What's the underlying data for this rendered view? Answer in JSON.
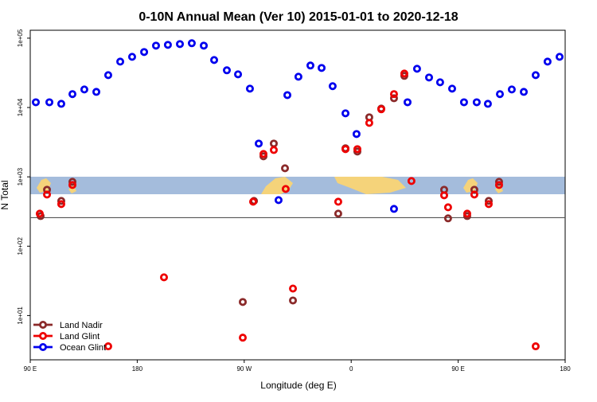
{
  "chart_data": {
    "type": "scatter",
    "title": "0-10N Annual Mean (Ver 10)   2015-01-01 to 2020-12-18",
    "xlabel": "Longitude (deg E)",
    "ylabel": "N Total",
    "log_y": true,
    "legend": "lower left",
    "hline": 258,
    "xlim": [
      90,
      540
    ],
    "ylim": [
      2.3,
      130000
    ],
    "xticks": [
      {
        "value": 90,
        "label": "90 E"
      },
      {
        "value": 180,
        "label": "180"
      },
      {
        "value": 270,
        "label": "90 W"
      },
      {
        "value": 360,
        "label": "0"
      },
      {
        "value": 450,
        "label": "90 E"
      },
      {
        "value": 540,
        "label": "180"
      }
    ],
    "yticks": [
      {
        "value": 10,
        "label": "1e+01"
      },
      {
        "value": 100,
        "label": "1e+02"
      },
      {
        "value": 1000,
        "label": "1e+03"
      },
      {
        "value": 10000,
        "label": "1e+04"
      },
      {
        "value": 100000,
        "label": "1e+05"
      }
    ],
    "series": [
      {
        "name": "Land Nadir",
        "color": "#8b2a2a",
        "x": [
          98.7,
          104.1,
          116.1,
          125.5,
          268.8,
          278.2,
          286.2,
          294.9,
          304.3,
          311.0,
          349.1,
          355.2,
          365.2,
          375.2,
          385.3,
          396.0,
          404.7,
          438.2,
          441.5,
          457.6,
          463.6,
          475.7,
          484.4
        ],
        "values": [
          272,
          652,
          450,
          849,
          15.7,
          450,
          1980,
          3020,
          1330,
          16.5,
          295,
          2580,
          2320,
          7230,
          9660,
          13600,
          28600,
          652,
          252,
          272,
          652,
          450,
          849
        ]
      },
      {
        "name": "Land Glint",
        "color": "#ee0000",
        "x": [
          98.0,
          104.1,
          116.1,
          125.5,
          155.6,
          202.5,
          268.8,
          277.5,
          286.2,
          294.9,
          304.9,
          311.0,
          349.1,
          355.2,
          365.2,
          375.2,
          385.3,
          396.0,
          404.7,
          410.7,
          438.2,
          441.5,
          457.6,
          463.6,
          475.7,
          484.4,
          515.2
        ],
        "values": [
          295,
          556,
          405,
          764,
          3.6,
          35.6,
          4.8,
          438,
          2140,
          2440,
          669,
          24.5,
          438,
          2510,
          2510,
          6000,
          9420,
          15600,
          30900,
          871,
          542,
          364,
          295,
          556,
          405,
          764,
          3.6
        ]
      },
      {
        "name": "Ocean Glint",
        "color": "#0000ee",
        "x": [
          94.7,
          106.1,
          116.1,
          125.5,
          135.5,
          145.6,
          155.6,
          165.7,
          175.7,
          185.8,
          195.8,
          205.8,
          215.9,
          225.9,
          236.0,
          244.7,
          255.4,
          264.8,
          274.8,
          282.2,
          298.9,
          306.3,
          315.6,
          325.7,
          335.1,
          344.4,
          355.2,
          364.5,
          396.0,
          407.4,
          415.4,
          425.5,
          434.8,
          444.9,
          454.9,
          465.6,
          475.0,
          485.1,
          495.1,
          505.2,
          515.2,
          525.2,
          535.3
        ],
        "values": [
          11900,
          11900,
          11300,
          15600,
          18200,
          16800,
          29300,
          45900,
          53800,
          63100,
          78000,
          80100,
          82200,
          84500,
          78000,
          48400,
          34400,
          30100,
          18700,
          3020,
          462,
          15100,
          27800,
          40300,
          37200,
          20300,
          8240,
          4150,
          345,
          11900,
          36200,
          27100,
          23100,
          18700,
          11900,
          11900,
          11300,
          15600,
          18200,
          16800,
          29300,
          45900,
          53800
        ]
      }
    ]
  }
}
